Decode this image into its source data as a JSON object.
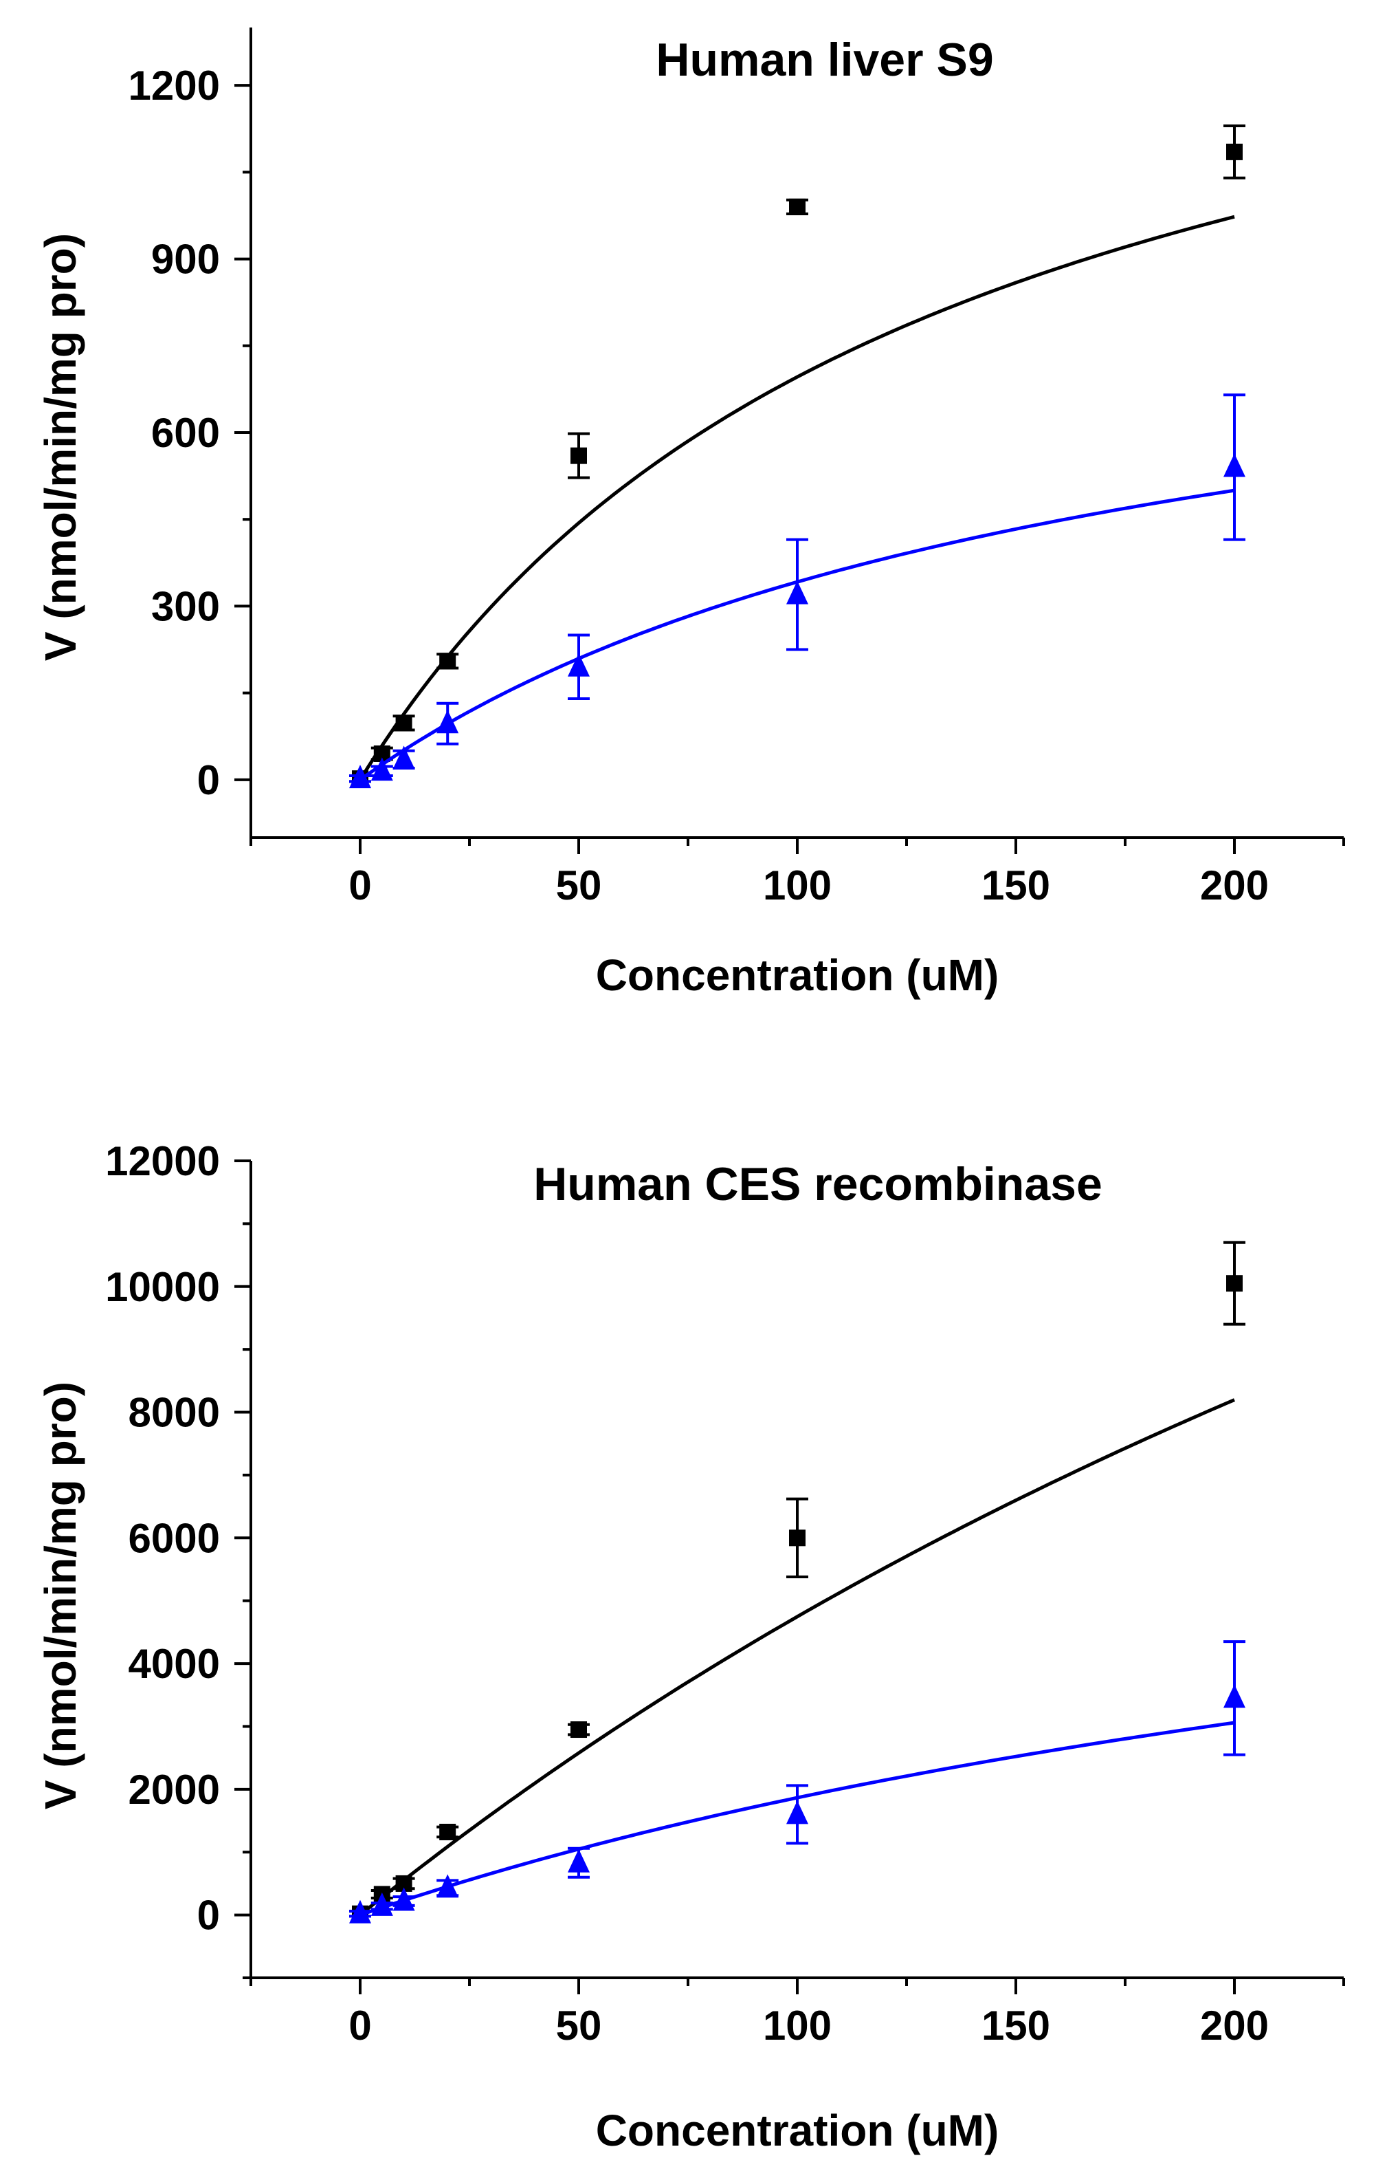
{
  "chart_data": [
    {
      "type": "scatter",
      "title": "Human liver S9",
      "xlabel": "Concentration (uM)",
      "ylabel": "V (nmol/min/mg pro)",
      "xlim": [
        -25,
        225
      ],
      "ylim": [
        -100,
        1300
      ],
      "xticks": [
        0,
        50,
        100,
        150,
        200
      ],
      "yticks": [
        0,
        300,
        600,
        900,
        1200
      ],
      "xtick_labels": [
        "0",
        "50",
        "100",
        "150",
        "200"
      ],
      "ytick_labels": [
        "0",
        "300",
        "600",
        "900",
        "1200"
      ],
      "x_minor_step": 25,
      "y_minor_step": 150,
      "grid": false,
      "series": [
        {
          "name": "black squares",
          "marker": "square",
          "color": "#000000",
          "points": [
            {
              "x": 0,
              "y": 2,
              "err": 5
            },
            {
              "x": 5,
              "y": 45,
              "err": 10
            },
            {
              "x": 10,
              "y": 98,
              "err": 12
            },
            {
              "x": 20,
              "y": 205,
              "err": 12
            },
            {
              "x": 50,
              "y": 560,
              "err": 38
            },
            {
              "x": 100,
              "y": 990,
              "err": 12
            },
            {
              "x": 200,
              "y": 1085,
              "err": 45
            }
          ],
          "fit": {
            "vmax": 1615,
            "km": 132,
            "x_start": 0,
            "x_end": 200
          }
        },
        {
          "name": "blue triangles",
          "marker": "triangle",
          "color": "#0000ff",
          "points": [
            {
              "x": 0,
              "y": 2,
              "err": 5
            },
            {
              "x": 5,
              "y": 15,
              "err": 8
            },
            {
              "x": 10,
              "y": 35,
              "err": 15
            },
            {
              "x": 20,
              "y": 97,
              "err": 35
            },
            {
              "x": 50,
              "y": 195,
              "err": 55
            },
            {
              "x": 100,
              "y": 320,
              "err": 95
            },
            {
              "x": 200,
              "y": 540,
              "err": 125
            }
          ],
          "fit": {
            "vmax": 930,
            "km": 172,
            "x_start": 0,
            "x_end": 200
          }
        }
      ]
    },
    {
      "type": "scatter",
      "title": "Human CES recombinase",
      "xlabel": "Concentration (uM)",
      "ylabel": "V (nmol/min/mg pro)",
      "xlim": [
        -25,
        225
      ],
      "ylim": [
        -1000,
        12000
      ],
      "xticks": [
        0,
        50,
        100,
        150,
        200
      ],
      "yticks": [
        0,
        2000,
        4000,
        6000,
        8000,
        10000,
        12000
      ],
      "xtick_labels": [
        "0",
        "50",
        "100",
        "150",
        "200"
      ],
      "ytick_labels": [
        "0",
        "2000",
        "4000",
        "6000",
        "8000",
        "10000",
        "12000"
      ],
      "x_minor_step": 25,
      "y_minor_step": 1000,
      "grid": false,
      "series": [
        {
          "name": "black squares",
          "marker": "square",
          "color": "#000000",
          "points": [
            {
              "x": 0,
              "y": 20,
              "err": 40
            },
            {
              "x": 5,
              "y": 330,
              "err": 60
            },
            {
              "x": 10,
              "y": 500,
              "err": 80
            },
            {
              "x": 20,
              "y": 1320,
              "err": 80
            },
            {
              "x": 50,
              "y": 2950,
              "err": 80
            },
            {
              "x": 100,
              "y": 6000,
              "err": 620
            },
            {
              "x": 200,
              "y": 10050,
              "err": 650
            }
          ],
          "fit": {
            "vmax": 30000,
            "km": 532,
            "x_start": 0,
            "x_end": 200
          }
        },
        {
          "name": "blue triangles",
          "marker": "triangle",
          "color": "#0000ff",
          "points": [
            {
              "x": 0,
              "y": 20,
              "err": 40
            },
            {
              "x": 5,
              "y": 140,
              "err": 50
            },
            {
              "x": 10,
              "y": 220,
              "err": 70
            },
            {
              "x": 20,
              "y": 430,
              "err": 120
            },
            {
              "x": 50,
              "y": 830,
              "err": 230
            },
            {
              "x": 100,
              "y": 1600,
              "err": 460
            },
            {
              "x": 200,
              "y": 3450,
              "err": 900
            }
          ],
          "fit": {
            "vmax": 8490,
            "km": 355,
            "x_start": 0,
            "x_end": 200
          }
        }
      ]
    }
  ]
}
